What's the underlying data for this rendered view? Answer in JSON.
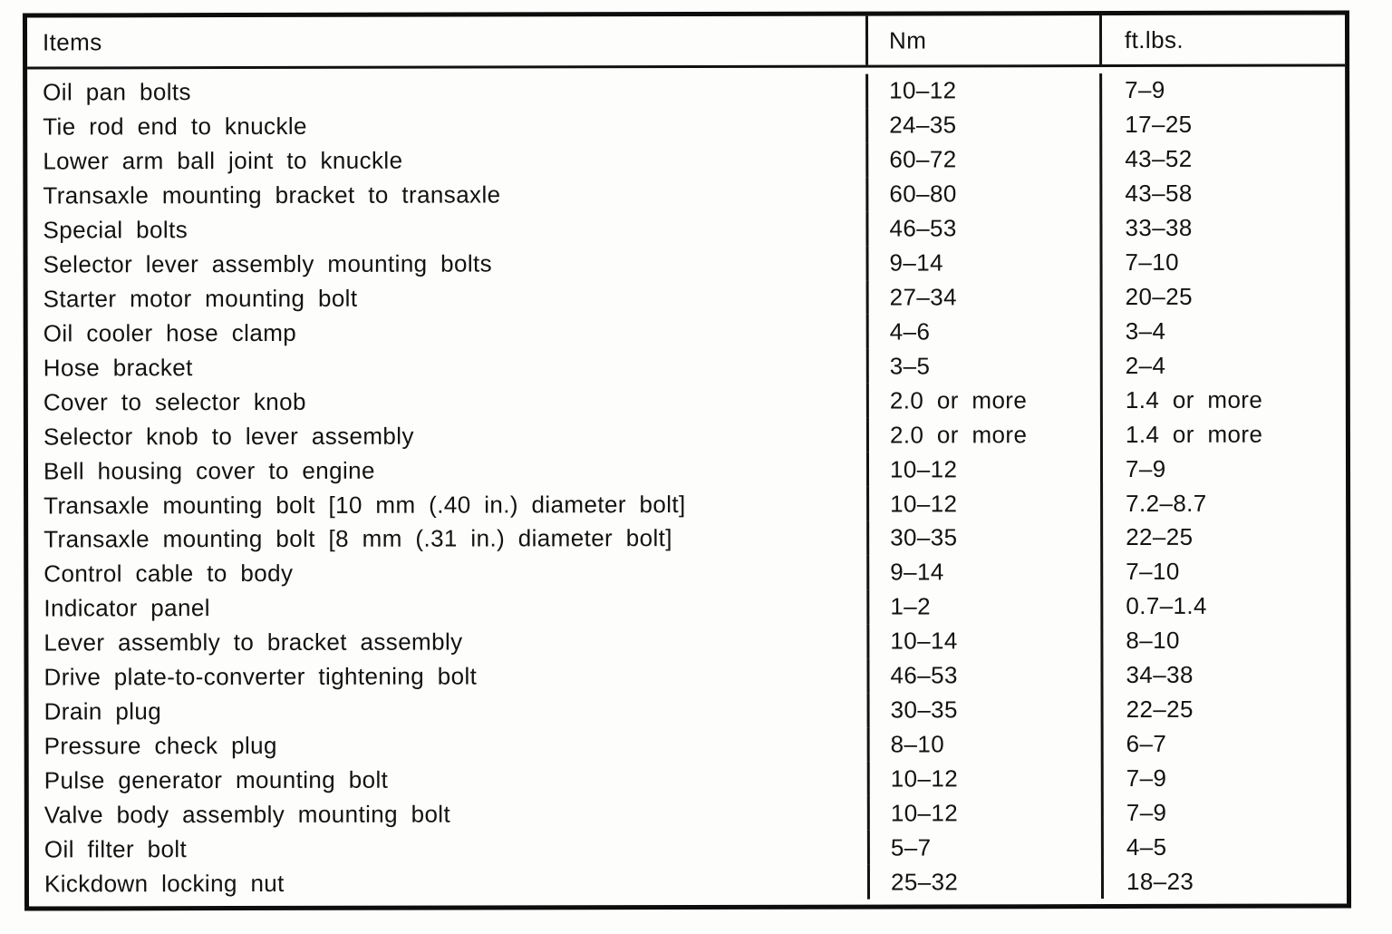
{
  "colors": {
    "ink": "#121212",
    "paper": "#fdfdfb",
    "border": "#0d0d0d"
  },
  "table": {
    "columns": [
      {
        "key": "item",
        "label": "Items"
      },
      {
        "key": "nm",
        "label": "Nm"
      },
      {
        "key": "ftlbs",
        "label": "ft.lbs."
      }
    ],
    "rows": [
      {
        "item": "Oil pan bolts",
        "nm": "10–12",
        "ftlbs": "7–9"
      },
      {
        "item": "Tie rod end to knuckle",
        "nm": "24–35",
        "ftlbs": "17–25"
      },
      {
        "item": "Lower arm ball joint to knuckle",
        "nm": "60–72",
        "ftlbs": "43–52"
      },
      {
        "item": "Transaxle mounting bracket to transaxle",
        "nm": "60–80",
        "ftlbs": "43–58"
      },
      {
        "item": "Special bolts",
        "nm": "46–53",
        "ftlbs": "33–38"
      },
      {
        "item": "Selector lever assembly mounting bolts",
        "nm": "9–14",
        "ftlbs": "7–10"
      },
      {
        "item": "Starter motor mounting bolt",
        "nm": "27–34",
        "ftlbs": "20–25"
      },
      {
        "item": "Oil cooler hose clamp",
        "nm": "4–6",
        "ftlbs": "3–4"
      },
      {
        "item": "Hose bracket",
        "nm": "3–5",
        "ftlbs": "2–4"
      },
      {
        "item": "Cover to selector knob",
        "nm": "2.0 or more",
        "ftlbs": "1.4 or more"
      },
      {
        "item": "Selector knob to lever assembly",
        "nm": "2.0 or more",
        "ftlbs": "1.4 or more"
      },
      {
        "item": "Bell housing cover to engine",
        "nm": "10–12",
        "ftlbs": "7–9"
      },
      {
        "item": "Transaxle mounting bolt [10 mm (.40 in.) diameter bolt]",
        "nm": "10–12",
        "ftlbs": "7.2–8.7"
      },
      {
        "item": "Transaxle mounting bolt [8 mm (.31 in.) diameter bolt]",
        "nm": "30–35",
        "ftlbs": "22–25"
      },
      {
        "item": "Control cable to body",
        "nm": "9–14",
        "ftlbs": "7–10"
      },
      {
        "item": "Indicator panel",
        "nm": "1–2",
        "ftlbs": "0.7–1.4"
      },
      {
        "item": "Lever assembly to bracket assembly",
        "nm": "10–14",
        "ftlbs": "8–10"
      },
      {
        "item": "Drive plate-to-converter tightening bolt",
        "nm": "46–53",
        "ftlbs": "34–38"
      },
      {
        "item": "Drain plug",
        "nm": "30–35",
        "ftlbs": "22–25"
      },
      {
        "item": "Pressure check plug",
        "nm": "8–10",
        "ftlbs": "6–7"
      },
      {
        "item": "Pulse generator mounting bolt",
        "nm": "10–12",
        "ftlbs": "7–9"
      },
      {
        "item": "Valve body assembly mounting bolt",
        "nm": "10–12",
        "ftlbs": "7–9"
      },
      {
        "item": "Oil filter bolt",
        "nm": "5–7",
        "ftlbs": "4–5"
      },
      {
        "item": "Kickdown locking nut",
        "nm": "25–32",
        "ftlbs": "18–23"
      }
    ]
  }
}
